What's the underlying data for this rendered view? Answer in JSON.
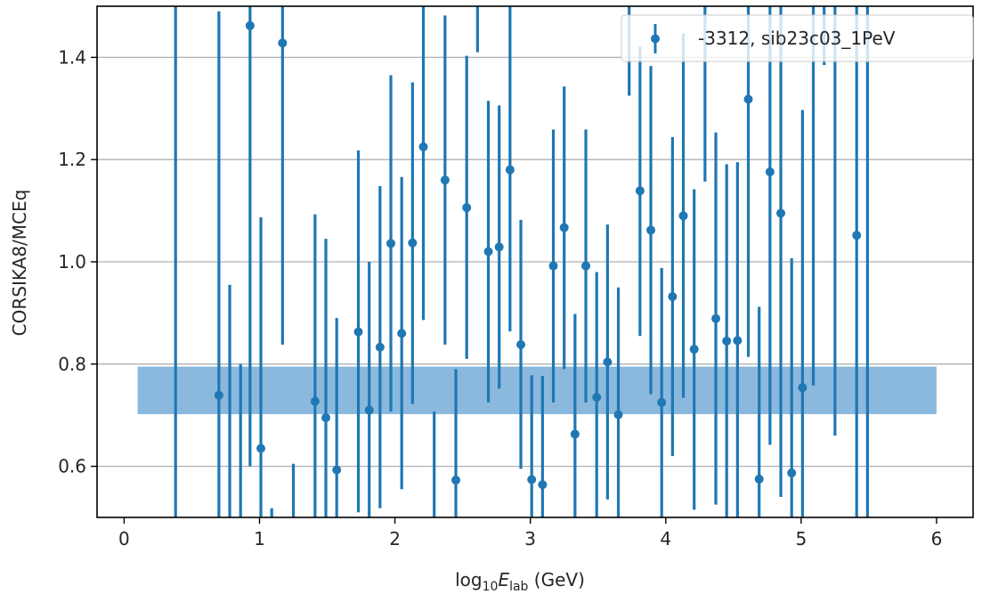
{
  "chart_data": {
    "type": "scatter",
    "xlabel": {
      "prefix": "log",
      "sub1": "10",
      "var": "E",
      "sub2": "lab",
      "suffix": " (GeV)"
    },
    "ylabel": "CORSIKA8/MCEq",
    "xlim": [
      -0.2,
      6.27
    ],
    "ylim": [
      0.5,
      1.5
    ],
    "xticks": [
      0,
      1,
      2,
      3,
      4,
      5,
      6
    ],
    "xtick_labels": [
      "0",
      "1",
      "2",
      "3",
      "4",
      "5",
      "6"
    ],
    "yticks": [
      0.6,
      0.8,
      1.0,
      1.2,
      1.4
    ],
    "ytick_labels": [
      "0.6",
      "0.8",
      "1.0",
      "1.2",
      "1.4"
    ],
    "grid": "horizontal",
    "legend_position": "top-right",
    "band": {
      "x": [
        0.1,
        6.0
      ],
      "y": [
        0.702,
        0.795
      ],
      "color": "#8ab9dd"
    },
    "series": [
      {
        "name": "-3312, sib23c03_1PeV",
        "color": "#1f77b4",
        "points": [
          {
            "x": 0.38,
            "y": null,
            "ylo": 0.5,
            "yhi": 1.5
          },
          {
            "x": 0.7,
            "y": 0.739,
            "ylo": 0.5,
            "yhi": 1.49
          },
          {
            "x": 0.78,
            "y": null,
            "ylo": 0.5,
            "yhi": 0.955
          },
          {
            "x": 0.86,
            "y": null,
            "ylo": 0.5,
            "yhi": 0.8
          },
          {
            "x": 0.93,
            "y": 1.462,
            "ylo": 0.6,
            "yhi": 1.5
          },
          {
            "x": 1.01,
            "y": 0.635,
            "ylo": 0.5,
            "yhi": 1.087
          },
          {
            "x": 1.09,
            "y": null,
            "ylo": 0.5,
            "yhi": 0.518
          },
          {
            "x": 1.17,
            "y": 1.428,
            "ylo": 0.838,
            "yhi": 1.5
          },
          {
            "x": 1.25,
            "y": null,
            "ylo": 0.5,
            "yhi": 0.605
          },
          {
            "x": 1.41,
            "y": 0.727,
            "ylo": 0.5,
            "yhi": 1.093
          },
          {
            "x": 1.49,
            "y": 0.695,
            "ylo": 0.5,
            "yhi": 1.045
          },
          {
            "x": 1.57,
            "y": 0.593,
            "ylo": 0.5,
            "yhi": 0.89
          },
          {
            "x": 1.73,
            "y": 0.863,
            "ylo": 0.51,
            "yhi": 1.218
          },
          {
            "x": 1.81,
            "y": 0.71,
            "ylo": 0.5,
            "yhi": 1.0
          },
          {
            "x": 1.89,
            "y": 0.833,
            "ylo": 0.518,
            "yhi": 1.148
          },
          {
            "x": 1.97,
            "y": 1.036,
            "ylo": 0.707,
            "yhi": 1.365
          },
          {
            "x": 2.05,
            "y": 0.86,
            "ylo": 0.555,
            "yhi": 1.166
          },
          {
            "x": 2.13,
            "y": 1.037,
            "ylo": 0.722,
            "yhi": 1.351
          },
          {
            "x": 2.21,
            "y": 1.225,
            "ylo": 0.886,
            "yhi": 1.5
          },
          {
            "x": 2.29,
            "y": null,
            "ylo": 0.5,
            "yhi": 0.707
          },
          {
            "x": 2.37,
            "y": 1.16,
            "ylo": 0.838,
            "yhi": 1.482
          },
          {
            "x": 2.45,
            "y": 0.573,
            "ylo": 0.5,
            "yhi": 0.79
          },
          {
            "x": 2.53,
            "y": 1.106,
            "ylo": 0.81,
            "yhi": 1.403
          },
          {
            "x": 2.61,
            "y": null,
            "ylo": 1.41,
            "yhi": 1.5
          },
          {
            "x": 2.69,
            "y": 1.02,
            "ylo": 0.725,
            "yhi": 1.315
          },
          {
            "x": 2.77,
            "y": 1.029,
            "ylo": 0.752,
            "yhi": 1.306
          },
          {
            "x": 2.85,
            "y": 1.18,
            "ylo": 0.864,
            "yhi": 1.5
          },
          {
            "x": 2.93,
            "y": 0.838,
            "ylo": 0.595,
            "yhi": 1.082
          },
          {
            "x": 3.01,
            "y": 0.574,
            "ylo": 0.5,
            "yhi": 0.778
          },
          {
            "x": 3.09,
            "y": 0.564,
            "ylo": 0.5,
            "yhi": 0.777
          },
          {
            "x": 3.17,
            "y": 0.992,
            "ylo": 0.725,
            "yhi": 1.259
          },
          {
            "x": 3.25,
            "y": 1.067,
            "ylo": 0.79,
            "yhi": 1.343
          },
          {
            "x": 3.33,
            "y": 0.663,
            "ylo": 0.5,
            "yhi": 0.898
          },
          {
            "x": 3.41,
            "y": 0.992,
            "ylo": 0.725,
            "yhi": 1.259
          },
          {
            "x": 3.49,
            "y": 0.735,
            "ylo": 0.5,
            "yhi": 0.98
          },
          {
            "x": 3.57,
            "y": 0.804,
            "ylo": 0.535,
            "yhi": 1.073
          },
          {
            "x": 3.65,
            "y": 0.701,
            "ylo": 0.5,
            "yhi": 0.95
          },
          {
            "x": 3.73,
            "y": null,
            "ylo": 1.325,
            "yhi": 1.5
          },
          {
            "x": 3.81,
            "y": 1.139,
            "ylo": 0.855,
            "yhi": 1.421
          },
          {
            "x": 3.89,
            "y": 1.062,
            "ylo": 0.741,
            "yhi": 1.383
          },
          {
            "x": 3.97,
            "y": 0.725,
            "ylo": 0.5,
            "yhi": 0.988
          },
          {
            "x": 4.05,
            "y": 0.932,
            "ylo": 0.62,
            "yhi": 1.244
          },
          {
            "x": 4.13,
            "y": 1.09,
            "ylo": 0.734,
            "yhi": 1.447
          },
          {
            "x": 4.21,
            "y": 0.829,
            "ylo": 0.515,
            "yhi": 1.142
          },
          {
            "x": 4.29,
            "y": null,
            "ylo": 1.157,
            "yhi": 1.5
          },
          {
            "x": 4.37,
            "y": 0.889,
            "ylo": 0.525,
            "yhi": 1.253
          },
          {
            "x": 4.45,
            "y": 0.845,
            "ylo": 0.5,
            "yhi": 1.191
          },
          {
            "x": 4.53,
            "y": 0.846,
            "ylo": 0.5,
            "yhi": 1.195
          },
          {
            "x": 4.61,
            "y": 1.318,
            "ylo": 0.814,
            "yhi": 1.5
          },
          {
            "x": 4.69,
            "y": 0.575,
            "ylo": 0.5,
            "yhi": 0.912
          },
          {
            "x": 4.77,
            "y": 1.176,
            "ylo": 0.642,
            "yhi": 1.5
          },
          {
            "x": 4.85,
            "y": 1.095,
            "ylo": 0.54,
            "yhi": 1.5
          },
          {
            "x": 4.93,
            "y": 0.587,
            "ylo": 0.5,
            "yhi": 1.007
          },
          {
            "x": 5.01,
            "y": 0.754,
            "ylo": 0.5,
            "yhi": 1.297
          },
          {
            "x": 5.09,
            "y": null,
            "ylo": 0.758,
            "yhi": 1.5
          },
          {
            "x": 5.17,
            "y": null,
            "ylo": 1.385,
            "yhi": 1.5
          },
          {
            "x": 5.25,
            "y": null,
            "ylo": 0.66,
            "yhi": 1.5
          },
          {
            "x": 5.41,
            "y": 1.052,
            "ylo": 0.5,
            "yhi": 1.5
          },
          {
            "x": 5.49,
            "y": null,
            "ylo": 0.5,
            "yhi": 1.5
          }
        ]
      }
    ]
  }
}
